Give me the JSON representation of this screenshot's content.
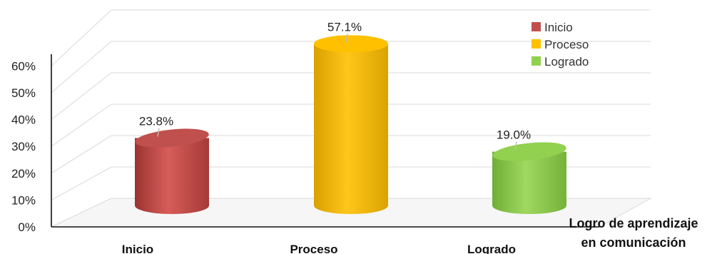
{
  "chart_data": {
    "type": "bar",
    "style": "3d-cylinder",
    "categories": [
      "Inicio",
      "Proceso",
      "Logrado"
    ],
    "values": [
      23.8,
      57.1,
      19.0
    ],
    "data_labels": [
      "23.8%",
      "57.1%",
      "19.0%"
    ],
    "colors": [
      "#c0504d",
      "#ffc000",
      "#92d050"
    ],
    "yticks": [
      "0%",
      "10%",
      "20%",
      "30%",
      "40%",
      "50%",
      "60%"
    ],
    "ylim": [
      0,
      60
    ],
    "xlabel_lines": [
      "Logro de aprendizaje",
      "en comunicación"
    ],
    "legend": [
      "Inicio",
      "Proceso",
      "Logrado"
    ],
    "legend_position": "top-right",
    "grid": true
  }
}
